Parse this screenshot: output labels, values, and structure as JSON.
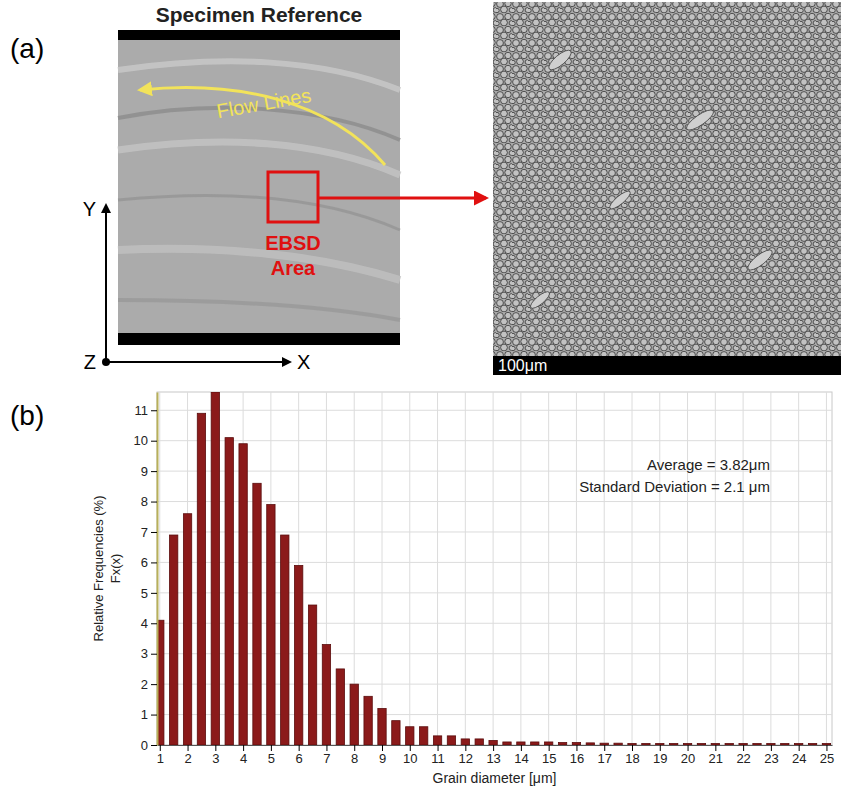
{
  "panel_a": {
    "label": "(a)",
    "title": "Specimen Reference",
    "flow_label": "Flow Lines",
    "region_label": "EBSD Area",
    "axis_y": "Y",
    "axis_z": "Z",
    "axis_x": "X",
    "scale_bar": "100μm"
  },
  "panel_b": {
    "label": "(b)"
  },
  "chart_data": {
    "type": "histogram",
    "xlabel": "Grain diameter [μm]",
    "ylabel": "Relative Frequencies (%)",
    "ylabel2": "Fx(x)",
    "annotations": [
      "Average = 3.82μm",
      "Standard Deviation = 2.1 μm"
    ],
    "bins": [
      0.75,
      1.25,
      1.75,
      2.25,
      2.75,
      3.25,
      3.75,
      4.25,
      4.75,
      5.25,
      5.75,
      6.25,
      6.75,
      7.25,
      7.75,
      8.25,
      8.75,
      9.25,
      9.75,
      10.25,
      10.75,
      11.25,
      11.75,
      12.25,
      12.75,
      13.25,
      13.75,
      14.25,
      14.75,
      15.25,
      15.75,
      16.25,
      16.75,
      17.25,
      17.75,
      18.25,
      18.75,
      19.25,
      19.75,
      20.25,
      20.75,
      21.25,
      21.75,
      22.25,
      22.75,
      23.25,
      23.75,
      24.25,
      24.75,
      25.25
    ],
    "values": [
      4.1,
      6.9,
      7.6,
      10.9,
      11.6,
      10.1,
      9.9,
      8.6,
      7.9,
      6.9,
      5.9,
      4.6,
      3.3,
      2.5,
      2.0,
      1.6,
      1.2,
      0.8,
      0.6,
      0.6,
      0.3,
      0.3,
      0.2,
      0.2,
      0.15,
      0.1,
      0.1,
      0.1,
      0.1,
      0.08,
      0.08,
      0.07,
      0.06,
      0.06,
      0.05,
      0.05,
      0.05,
      0.05,
      0.05,
      0.05,
      0.05,
      0.05,
      0.05,
      0.05,
      0.05,
      0.05,
      0.05,
      0.05,
      0.05
    ],
    "color": "#8b1a1a",
    "xlim": [
      0.9,
      25.2
    ],
    "xticks": [
      1,
      2,
      3,
      4,
      5,
      6,
      7,
      8,
      9,
      10,
      11,
      12,
      13,
      14,
      15,
      16,
      17,
      18,
      19,
      20,
      21,
      22,
      23,
      24,
      25
    ],
    "ylim": [
      0,
      11.6
    ],
    "yticks": [
      0,
      1,
      2,
      3,
      4,
      5,
      6,
      7,
      8,
      9,
      10,
      11
    ],
    "grid": true
  }
}
